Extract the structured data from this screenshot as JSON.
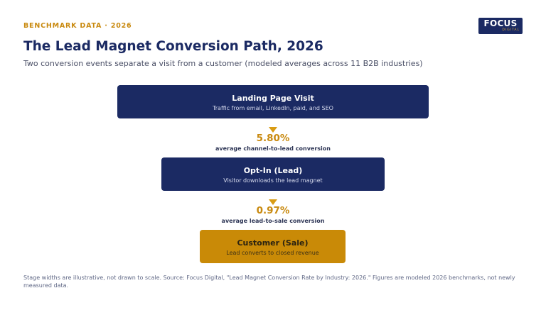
{
  "eyebrow": "BENCHMARK DATA · 2026",
  "logo": {
    "word": "FOCUS",
    "sub": "DIGITAL"
  },
  "title": "The Lead Magnet Conversion Path, 2026",
  "subtitle": "Two conversion events separate a visit from a customer (modeled averages across 11 B2B industries)",
  "stages": [
    {
      "title": "Landing Page Visit",
      "description": "Traffic from email, LinkedIn, paid, and SEO",
      "color": "#1b2a63"
    },
    {
      "title": "Opt-In (Lead)",
      "description": "Visitor downloads the lead magnet",
      "color": "#1b2a63"
    },
    {
      "title": "Customer (Sale)",
      "description": "Lead converts to closed revenue",
      "color": "#c98a07"
    }
  ],
  "conversions": [
    {
      "rate": "5.80%",
      "label": "average channel-to-lead conversion"
    },
    {
      "rate": "0.97%",
      "label": "average lead-to-sale conversion"
    }
  ],
  "footnote": "Stage widths are illustrative, not drawn to scale. Source: Focus Digital, \"Lead Magnet Conversion Rate by Industry: 2026.\" Figures are modeled 2026 benchmarks, not newly measured data.",
  "colors": {
    "navy": "#1b2a63",
    "gold": "#c98a07",
    "accent": "#d99c14"
  }
}
